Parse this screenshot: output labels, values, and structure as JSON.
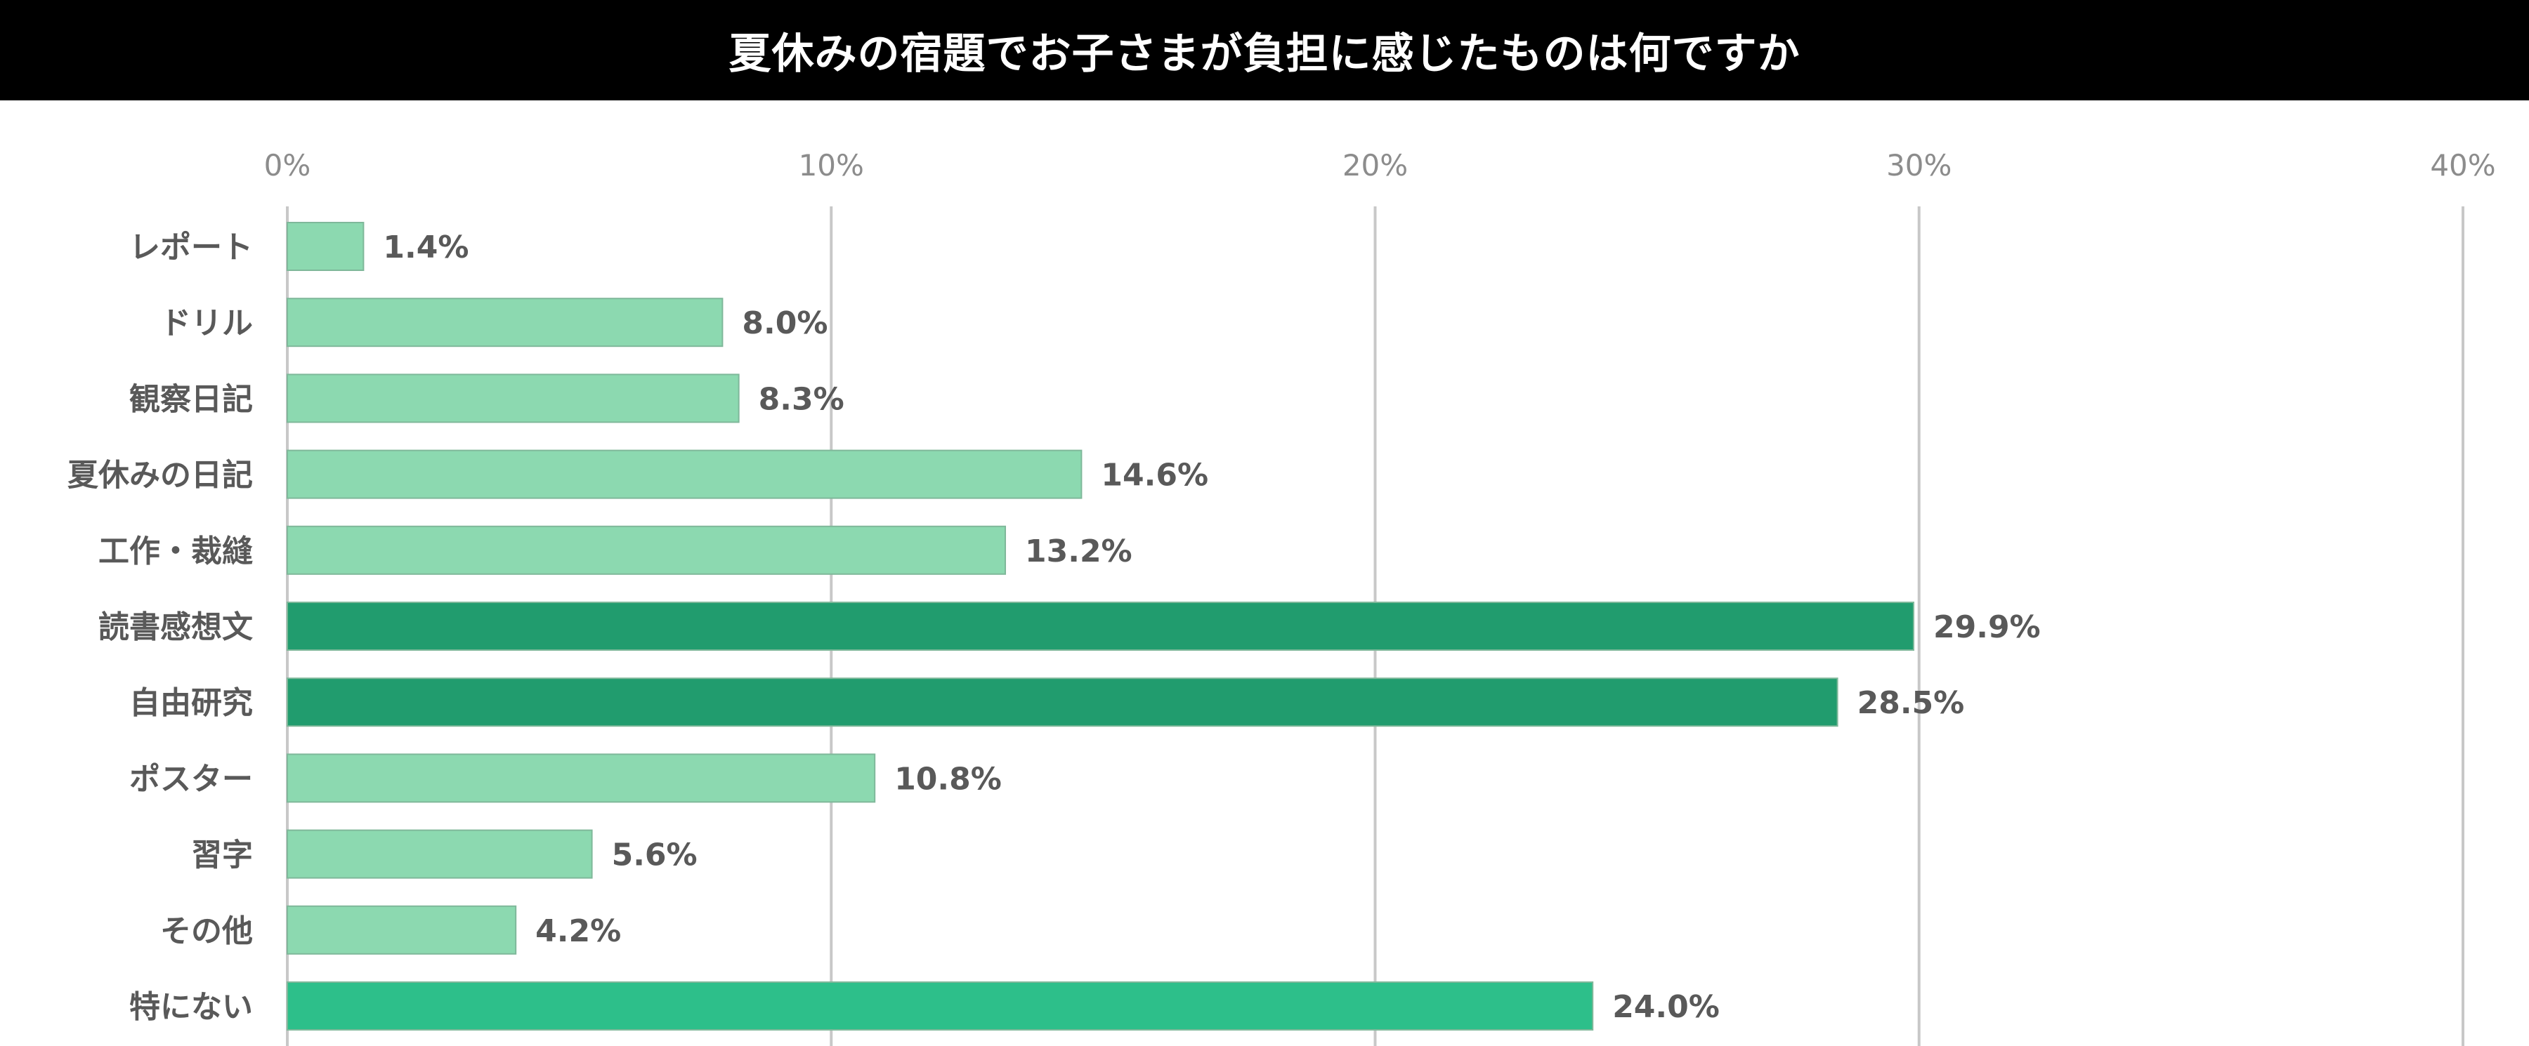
{
  "chart_data": {
    "type": "bar",
    "orientation": "horizontal",
    "title": "夏休みの宿題でお子さまが負担に感じたものは何ですか",
    "categories": [
      "レポート",
      "ドリル",
      "観察日記",
      "夏休みの日記",
      "工作・裁縫",
      "読書感想文",
      "自由研究",
      "ポスター",
      "習字",
      "その他",
      "特にない"
    ],
    "values": [
      1.4,
      8.0,
      8.3,
      14.6,
      13.2,
      29.9,
      28.5,
      10.8,
      5.6,
      4.2,
      24.0
    ],
    "value_labels": [
      "1.4%",
      "8.0%",
      "8.3%",
      "14.6%",
      "13.2%",
      "29.9%",
      "28.5%",
      "10.8%",
      "5.6%",
      "4.2%",
      "24.0%"
    ],
    "xlim": [
      0,
      40
    ],
    "x_ticks": [
      "0%",
      "10%",
      "20%",
      "30%",
      "40%"
    ],
    "x_tick_values": [
      0,
      10,
      20,
      30,
      40
    ],
    "axis_position": "top",
    "grid": true,
    "xlabel": "",
    "ylabel": "",
    "bar_colors": [
      "#8cd9b0",
      "#8cd9b0",
      "#8cd9b0",
      "#8cd9b0",
      "#8cd9b0",
      "#219c6e",
      "#219c6e",
      "#8cd9b0",
      "#8cd9b0",
      "#8cd9b0",
      "#2dbf8a"
    ]
  }
}
